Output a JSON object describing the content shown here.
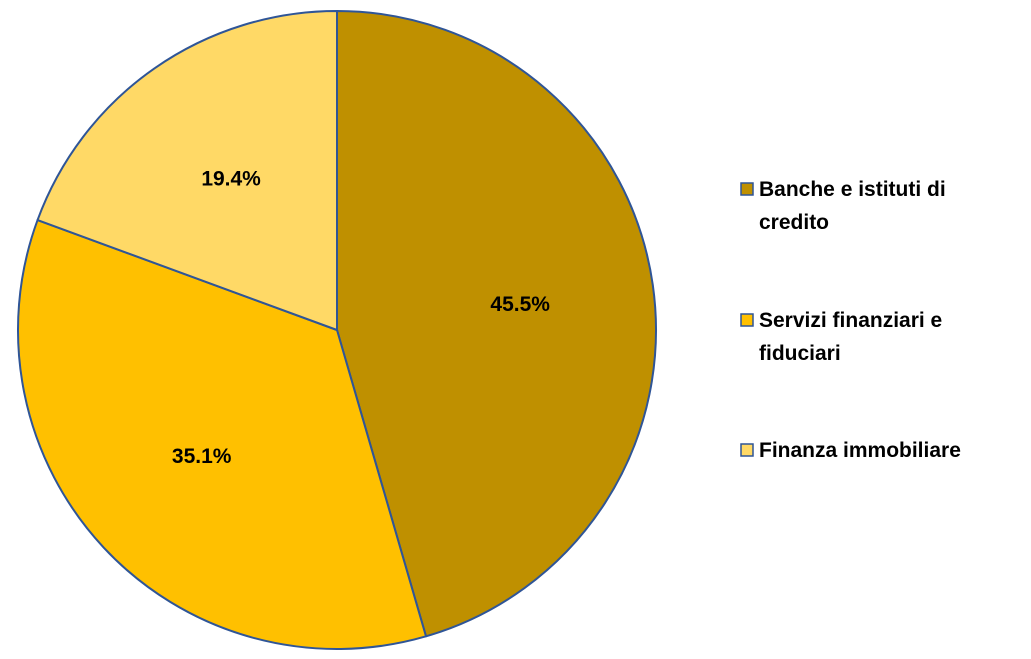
{
  "chart_data": {
    "type": "pie",
    "start_angle": "12 o'clock, clockwise",
    "slices": [
      {
        "name": "Banche e istituti di credito",
        "value": 45.5,
        "label": "45.5%",
        "color": "#BF9000"
      },
      {
        "name": "Servizi finanziari e fiduciari",
        "value": 35.1,
        "label": "35.1%",
        "color": "#FFC000"
      },
      {
        "name": "Finanza immobiliare",
        "value": 19.4,
        "label": "19.4%",
        "color": "#FFD966"
      }
    ],
    "slice_border_color": "#2F5597",
    "legend": {
      "placement": "right",
      "entries": [
        {
          "lines": [
            "Banche e istituti di",
            "credito"
          ]
        },
        {
          "lines": [
            "Servizi finanziari e",
            "fiduciari"
          ]
        },
        {
          "lines": [
            "Finanza immobiliare"
          ]
        }
      ]
    }
  }
}
